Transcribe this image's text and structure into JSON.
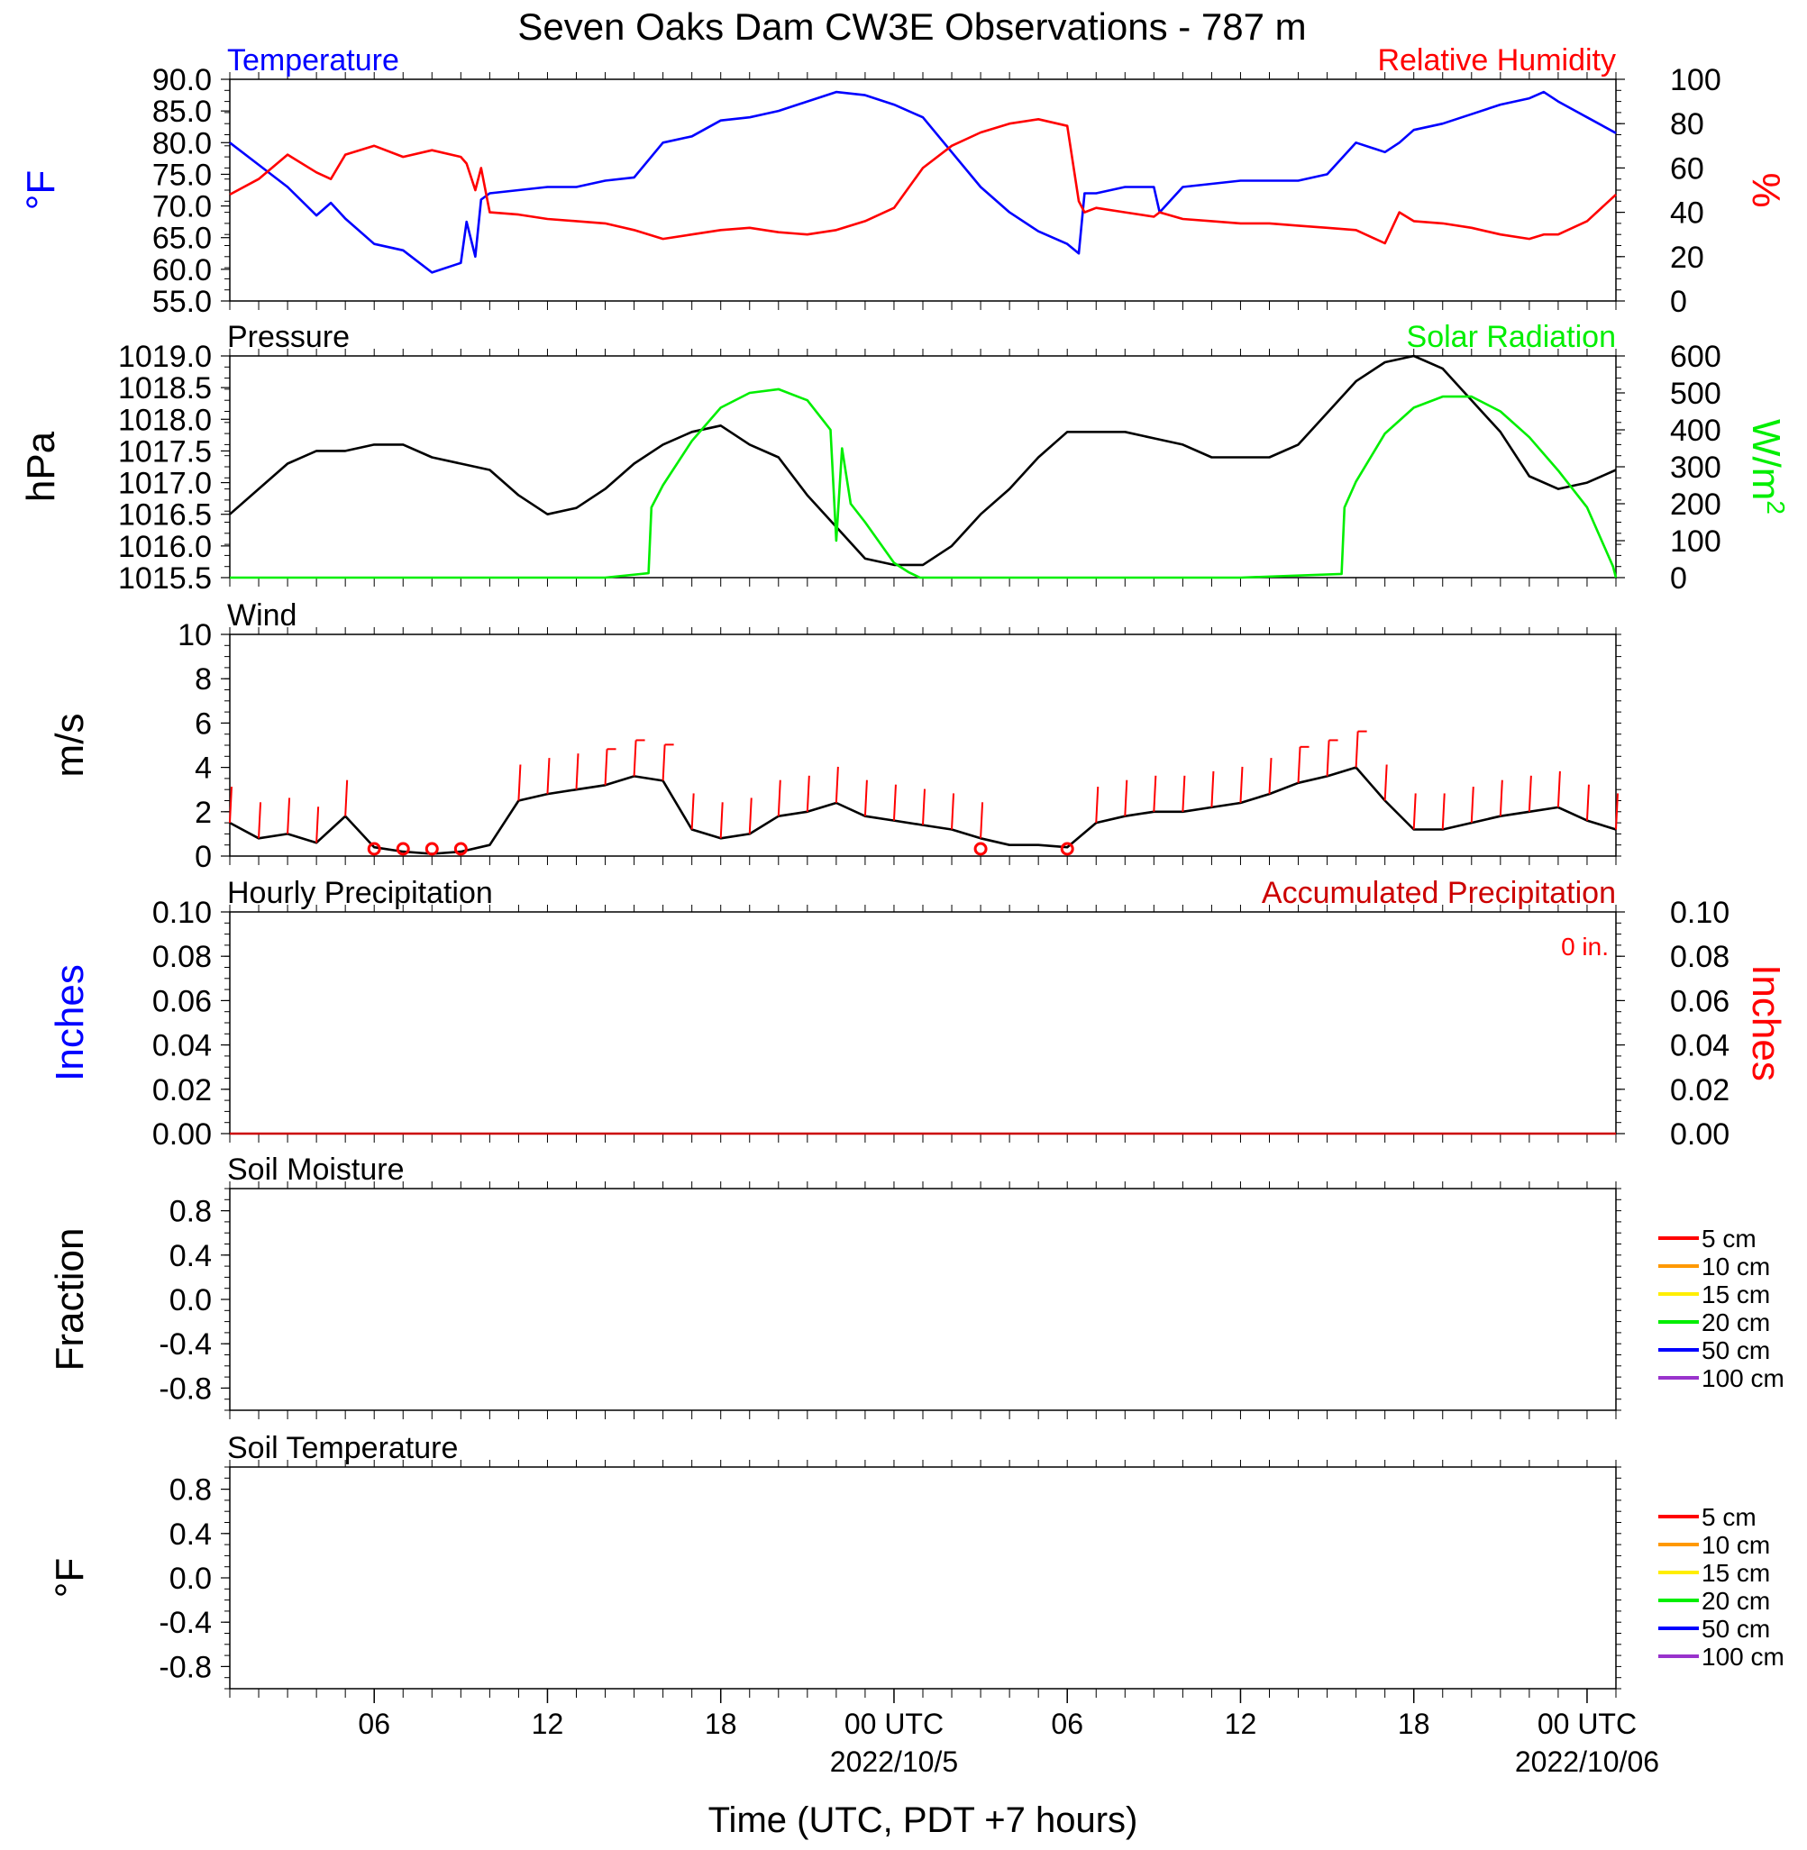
{
  "figure": {
    "title": "Seven Oaks Dam CW3E Observations - 787 m",
    "xlabel": "Time (UTC, PDT +7 hours)",
    "x_ticks": [
      {
        "hour": 6,
        "label": "06",
        "sub": ""
      },
      {
        "hour": 12,
        "label": "12",
        "sub": ""
      },
      {
        "hour": 18,
        "label": "18",
        "sub": ""
      },
      {
        "hour": 24,
        "label": "00 UTC",
        "sub": "2022/10/5"
      },
      {
        "hour": 30,
        "label": "06",
        "sub": ""
      },
      {
        "hour": 36,
        "label": "12",
        "sub": ""
      },
      {
        "hour": 42,
        "label": "18",
        "sub": ""
      },
      {
        "hour": 48,
        "label": "00 UTC",
        "sub": "2022/10/06"
      }
    ],
    "x_range_hours": [
      1,
      49
    ]
  },
  "chart_data": [
    {
      "type": "line",
      "panel": "temperature-humidity",
      "title_left": "Temperature",
      "title_right": "Relative Humidity",
      "ylabel_left": "°F",
      "ylabel_right": "%",
      "ylim_left": [
        55,
        90
      ],
      "yticks_left": [
        "90.0",
        "85.0",
        "80.0",
        "75.0",
        "70.0",
        "65.0",
        "60.0",
        "55.0"
      ],
      "ylim_right": [
        0,
        100
      ],
      "yticks_right": [
        "100",
        "80",
        "60",
        "40",
        "20",
        "0"
      ],
      "series": [
        {
          "name": "Temperature",
          "axis": "left",
          "color": "#0000ff",
          "x": [
            1,
            2,
            3,
            4,
            4.5,
            5,
            6,
            7,
            8,
            9,
            9.2,
            9.5,
            9.7,
            10,
            11,
            12,
            13,
            14,
            15,
            16,
            17,
            18,
            19,
            20,
            21,
            22,
            23,
            24,
            25,
            26,
            27,
            28,
            29,
            30,
            30.4,
            30.6,
            31,
            32,
            33,
            33.2,
            34,
            35,
            36,
            37,
            38,
            39,
            40,
            41,
            41.5,
            42,
            43,
            44,
            45,
            46,
            46.5,
            47,
            48,
            49
          ],
          "y": [
            80,
            76.5,
            73,
            68.5,
            70.5,
            68,
            64,
            63,
            59.5,
            61,
            67.5,
            62,
            71,
            72,
            72.5,
            73,
            73,
            74,
            74.5,
            80,
            81,
            83.5,
            84,
            85,
            86.5,
            88,
            87.5,
            86,
            84,
            78.5,
            73,
            69,
            66,
            64,
            62.5,
            72,
            72,
            73,
            73,
            69,
            73,
            73.5,
            74,
            74,
            74,
            75,
            80,
            78.5,
            80,
            82,
            83,
            84.5,
            86,
            87,
            88,
            86.5,
            84,
            81.5
          ]
        },
        {
          "name": "Relative Humidity",
          "axis": "right",
          "color": "#ff0000",
          "x": [
            1,
            2,
            3,
            4,
            4.5,
            5,
            6,
            7,
            8,
            9,
            9.2,
            9.5,
            9.7,
            10,
            11,
            12,
            13,
            14,
            15,
            16,
            17,
            18,
            19,
            20,
            21,
            22,
            23,
            24,
            25,
            26,
            27,
            28,
            29,
            30,
            30.4,
            30.6,
            31,
            32,
            33,
            33.2,
            34,
            35,
            36,
            37,
            38,
            39,
            40,
            41,
            41.5,
            42,
            43,
            44,
            45,
            46,
            46.5,
            47,
            48,
            49
          ],
          "y": [
            48,
            55,
            66,
            58,
            55,
            66,
            70,
            65,
            68,
            65,
            62,
            50,
            60,
            40,
            39,
            37,
            36,
            35,
            32,
            28,
            30,
            32,
            33,
            31,
            30,
            32,
            36,
            42,
            60,
            70,
            76,
            80,
            82,
            79,
            45,
            40,
            42,
            40,
            38,
            40,
            37,
            36,
            35,
            35,
            34,
            33,
            32,
            26,
            40,
            36,
            35,
            33,
            30,
            28,
            30,
            30,
            36,
            48
          ]
        }
      ]
    },
    {
      "type": "line",
      "panel": "pressure-solar",
      "title_left": "Pressure",
      "title_right": "Solar Radiation",
      "ylabel_left": "hPa",
      "ylabel_right": "W/m",
      "ylabel_right_sup": "2",
      "ylim_left": [
        1015.5,
        1019.0
      ],
      "yticks_left": [
        "1019.0",
        "1018.5",
        "1018.0",
        "1017.5",
        "1017.0",
        "1016.5",
        "1016.0",
        "1015.5"
      ],
      "ylim_right": [
        0,
        600
      ],
      "yticks_right": [
        "600",
        "500",
        "400",
        "300",
        "200",
        "100",
        "0"
      ],
      "series": [
        {
          "name": "Pressure",
          "axis": "left",
          "color": "#000000",
          "x": [
            1,
            2,
            3,
            4,
            5,
            6,
            7,
            8,
            9,
            10,
            11,
            12,
            13,
            14,
            15,
            16,
            17,
            18,
            19,
            20,
            21,
            22,
            23,
            24,
            25,
            26,
            27,
            28,
            29,
            30,
            31,
            32,
            33,
            34,
            35,
            36,
            37,
            38,
            39,
            40,
            41,
            42,
            43,
            44,
            45,
            46,
            47,
            48,
            49
          ],
          "y": [
            1016.5,
            1016.9,
            1017.3,
            1017.5,
            1017.5,
            1017.6,
            1017.6,
            1017.4,
            1017.3,
            1017.2,
            1016.8,
            1016.5,
            1016.6,
            1016.9,
            1017.3,
            1017.6,
            1017.8,
            1017.9,
            1017.6,
            1017.4,
            1016.8,
            1016.3,
            1015.8,
            1015.7,
            1015.7,
            1016.0,
            1016.5,
            1016.9,
            1017.4,
            1017.8,
            1017.8,
            1017.8,
            1017.7,
            1017.6,
            1017.4,
            1017.4,
            1017.4,
            1017.6,
            1018.1,
            1018.6,
            1018.9,
            1019.0,
            1018.8,
            1018.3,
            1017.8,
            1017.1,
            1016.9,
            1017.0,
            1017.2
          ]
        },
        {
          "name": "Solar Radiation",
          "axis": "right",
          "color": "#00ee00",
          "x": [
            1,
            14,
            15.5,
            15.6,
            16,
            17,
            18,
            19,
            20,
            21,
            21.5,
            21.8,
            22,
            22.2,
            22.5,
            23,
            24,
            24.5,
            24.9,
            25.2,
            27,
            30,
            33,
            36,
            39.5,
            39.6,
            40,
            41,
            42,
            43,
            44,
            45,
            46,
            47,
            48,
            48.9,
            49
          ],
          "y": [
            0,
            0,
            12,
            190,
            250,
            370,
            460,
            500,
            510,
            480,
            430,
            400,
            100,
            350,
            200,
            150,
            40,
            15,
            0,
            0,
            0,
            0,
            0,
            0,
            10,
            190,
            260,
            390,
            460,
            490,
            490,
            450,
            380,
            290,
            190,
            30,
            0
          ]
        }
      ]
    },
    {
      "type": "line",
      "panel": "wind",
      "title_left": "Wind",
      "ylabel_left": "m/s",
      "ylim_left": [
        0,
        10
      ],
      "yticks_left": [
        "10",
        "8",
        "6",
        "4",
        "2",
        "0"
      ],
      "series": [
        {
          "name": "Wind",
          "axis": "left",
          "color": "#000000",
          "x": [
            1,
            2,
            3,
            4,
            5,
            6,
            7,
            8,
            9,
            10,
            11,
            12,
            13,
            14,
            15,
            16,
            17,
            18,
            19,
            20,
            21,
            22,
            23,
            24,
            25,
            26,
            27,
            28,
            29,
            30,
            31,
            32,
            33,
            34,
            35,
            36,
            37,
            38,
            39,
            40,
            41,
            42,
            43,
            44,
            45,
            46,
            47,
            48,
            49
          ],
          "y": [
            1.5,
            0.8,
            1.0,
            0.6,
            1.8,
            0.4,
            0.2,
            0.1,
            0.2,
            0.5,
            2.5,
            2.8,
            3.0,
            3.2,
            3.6,
            3.4,
            1.2,
            0.8,
            1.0,
            1.8,
            2.0,
            2.4,
            1.8,
            1.6,
            1.4,
            1.2,
            0.8,
            0.5,
            0.5,
            0.4,
            1.5,
            1.8,
            2.0,
            2.0,
            2.2,
            2.4,
            2.8,
            3.3,
            3.6,
            4.0,
            2.5,
            1.2,
            1.2,
            1.5,
            1.8,
            2.0,
            2.2,
            1.6,
            1.2
          ]
        }
      ],
      "calm_markers_hours": [
        6,
        7,
        8,
        9,
        27,
        30
      ]
    },
    {
      "type": "line",
      "panel": "precipitation",
      "title_left": "Hourly Precipitation",
      "title_right": "Accumulated Precipitation",
      "annotation": "0 in.",
      "ylabel_left": "Inches",
      "ylabel_right": "Inches",
      "ylim_left": [
        0,
        0.1
      ],
      "yticks_left": [
        "0.10",
        "0.08",
        "0.06",
        "0.04",
        "0.02",
        "0.00"
      ],
      "ylim_right": [
        0,
        0.1
      ],
      "yticks_right": [
        "0.10",
        "0.08",
        "0.06",
        "0.04",
        "0.02",
        "0.00"
      ],
      "series": [
        {
          "name": "Accumulated Precipitation",
          "axis": "right",
          "color": "#cc0000",
          "x": [
            1,
            49
          ],
          "y": [
            0,
            0
          ]
        }
      ]
    },
    {
      "type": "line",
      "panel": "soil-moisture",
      "title_left": "Soil Moisture",
      "ylabel_left": "Fraction",
      "ylim_left": [
        -1,
        1
      ],
      "yticks_left": [
        "0.8",
        "0.4",
        "0.0",
        "-0.4",
        "-0.8"
      ],
      "legend": [
        "5 cm",
        "10 cm",
        "15 cm",
        "20 cm",
        "50 cm",
        "100 cm"
      ],
      "legend_colors": [
        "#ff0000",
        "#ff9900",
        "#ffee00",
        "#00ee00",
        "#0000ff",
        "#9933cc"
      ],
      "legend_position": "right",
      "series": []
    },
    {
      "type": "line",
      "panel": "soil-temperature",
      "title_left": "Soil Temperature",
      "ylabel_left": "°F",
      "ylim_left": [
        -1,
        1
      ],
      "yticks_left": [
        "0.8",
        "0.4",
        "0.0",
        "-0.4",
        "-0.8"
      ],
      "legend": [
        "5 cm",
        "10 cm",
        "15 cm",
        "20 cm",
        "50 cm",
        "100 cm"
      ],
      "legend_colors": [
        "#ff0000",
        "#ff9900",
        "#ffee00",
        "#00ee00",
        "#0000ff",
        "#9933cc"
      ],
      "legend_position": "right",
      "series": []
    }
  ]
}
